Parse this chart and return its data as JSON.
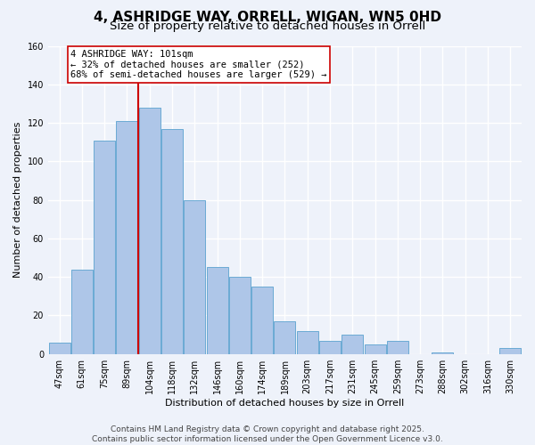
{
  "title": "4, ASHRIDGE WAY, ORRELL, WIGAN, WN5 0HD",
  "subtitle": "Size of property relative to detached houses in Orrell",
  "xlabel": "Distribution of detached houses by size in Orrell",
  "ylabel": "Number of detached properties",
  "bar_labels": [
    "47sqm",
    "61sqm",
    "75sqm",
    "89sqm",
    "104sqm",
    "118sqm",
    "132sqm",
    "146sqm",
    "160sqm",
    "174sqm",
    "189sqm",
    "203sqm",
    "217sqm",
    "231sqm",
    "245sqm",
    "259sqm",
    "273sqm",
    "288sqm",
    "302sqm",
    "316sqm",
    "330sqm"
  ],
  "bar_values": [
    6,
    44,
    111,
    121,
    128,
    117,
    80,
    45,
    40,
    35,
    17,
    12,
    7,
    10,
    5,
    7,
    0,
    1,
    0,
    0,
    3
  ],
  "bar_color": "#aec6e8",
  "bar_edge_color": "#6aaad4",
  "ylim": [
    0,
    160
  ],
  "yticks": [
    0,
    20,
    40,
    60,
    80,
    100,
    120,
    140,
    160
  ],
  "vline_x_index": 4,
  "vline_color": "#cc0000",
  "annotation_title": "4 ASHRIDGE WAY: 101sqm",
  "annotation_line1": "← 32% of detached houses are smaller (252)",
  "annotation_line2": "68% of semi-detached houses are larger (529) →",
  "annotation_box_color": "#ffffff",
  "annotation_box_edge_color": "#cc0000",
  "footer1": "Contains HM Land Registry data © Crown copyright and database right 2025.",
  "footer2": "Contains public sector information licensed under the Open Government Licence v3.0.",
  "background_color": "#eef2fa",
  "grid_color": "#ffffff",
  "title_fontsize": 11,
  "subtitle_fontsize": 9.5,
  "axis_label_fontsize": 8,
  "tick_fontsize": 7,
  "annotation_fontsize": 7.5,
  "footer_fontsize": 6.5
}
